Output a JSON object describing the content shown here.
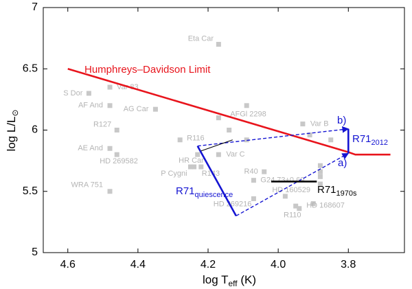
{
  "chart_data": {
    "type": "scatter",
    "xlabel": {
      "text": "log T",
      "sub": "eff",
      "suffix": " (K)"
    },
    "ylabel": {
      "text": "log L/L",
      "sub": "⊙"
    },
    "xlim": [
      4.67,
      3.64
    ],
    "ylim": [
      5,
      7
    ],
    "xticks": [
      4.6,
      4.4,
      4.2,
      {
        "value": 4.0,
        "label": "4.0"
      },
      3.8
    ],
    "yticks": [
      5,
      5.5,
      6,
      6.5,
      7
    ],
    "grid": false,
    "stars": {
      "color": "#c8c8c8",
      "names": [
        "Eta Car",
        "Var 83",
        "S Dor",
        "AF And",
        "AG Car",
        "AFGl 2298",
        null,
        "R127",
        null,
        "R116",
        null,
        "Var B",
        null,
        null,
        "AE And",
        "HD 269582",
        "Var C",
        null,
        "HR Car",
        "P Cygni",
        "R143",
        "R40",
        "G24.73+0.69",
        null,
        null,
        null,
        null,
        "WRA 751",
        "HD 160529",
        "HD 269216",
        null,
        "R110",
        "HD 168607"
      ],
      "x": [
        4.17,
        4.48,
        4.54,
        4.48,
        4.35,
        4.09,
        4.17,
        4.46,
        4.14,
        4.28,
        4.09,
        3.93,
        3.91,
        3.85,
        4.48,
        4.46,
        4.17,
        4.23,
        4.25,
        4.24,
        4.22,
        4.04,
        4.07,
        3.88,
        3.88,
        3.88,
        3.88,
        4.48,
        3.98,
        4.07,
        3.95,
        3.94,
        3.9
      ],
      "y": [
        6.7,
        6.35,
        6.3,
        6.2,
        6.17,
        6.2,
        6.1,
        6.0,
        6.0,
        5.92,
        5.92,
        6.05,
        5.96,
        5.92,
        5.85,
        5.8,
        5.8,
        5.8,
        5.7,
        5.7,
        5.7,
        5.66,
        5.59,
        5.71,
        5.66,
        5.62,
        5.56,
        5.5,
        5.46,
        5.44,
        5.38,
        5.36,
        5.4
      ]
    },
    "series": [
      {
        "name": "Humphreys–Davidson Limit",
        "color": "#e8141c",
        "style": "solid",
        "weight": "bold",
        "x": [
          4.6,
          3.8,
          3.78,
          3.68
        ],
        "y": [
          6.5,
          5.82,
          5.8,
          5.8
        ]
      },
      {
        "color": "#1414d2",
        "style": "solid",
        "weight": "bold",
        "x": [
          4.23,
          4.12
        ],
        "y": [
          5.87,
          5.3
        ]
      },
      {
        "color": "#1414d2",
        "style": "solid",
        "weight": "bold",
        "x": [
          3.8,
          3.8
        ],
        "y": [
          6.01,
          5.81
        ]
      },
      {
        "color": "#1414d2",
        "style": "dashed",
        "weight": "normal",
        "arrow": true,
        "x": [
          4.12,
          3.8
        ],
        "y": [
          5.3,
          5.81
        ]
      },
      {
        "color": "#1414d2",
        "style": "dashed",
        "weight": "normal",
        "arrow": true,
        "x": [
          4.23,
          3.8
        ],
        "y": [
          5.87,
          6.01
        ]
      },
      {
        "color": "#000000",
        "style": "solid",
        "weight": "thin",
        "x": [
          4.22,
          4.13
        ],
        "y": [
          5.83,
          5.92
        ]
      },
      {
        "color": "#000000",
        "style": "solid",
        "weight": "bold",
        "x": [
          4.02,
          3.89
        ],
        "y": [
          5.58,
          5.58
        ]
      }
    ],
    "annotations": [
      {
        "text": "R71",
        "sub": "quiescence",
        "color": "#1414d2"
      },
      {
        "text": "R71",
        "sub": "2012",
        "color": "#1414d2"
      },
      {
        "text": "R71",
        "sub": "1970s",
        "color": "#000000"
      },
      {
        "text": "a)",
        "color": "#1414d2"
      },
      {
        "text": "b)",
        "color": "#1414d2"
      }
    ]
  }
}
